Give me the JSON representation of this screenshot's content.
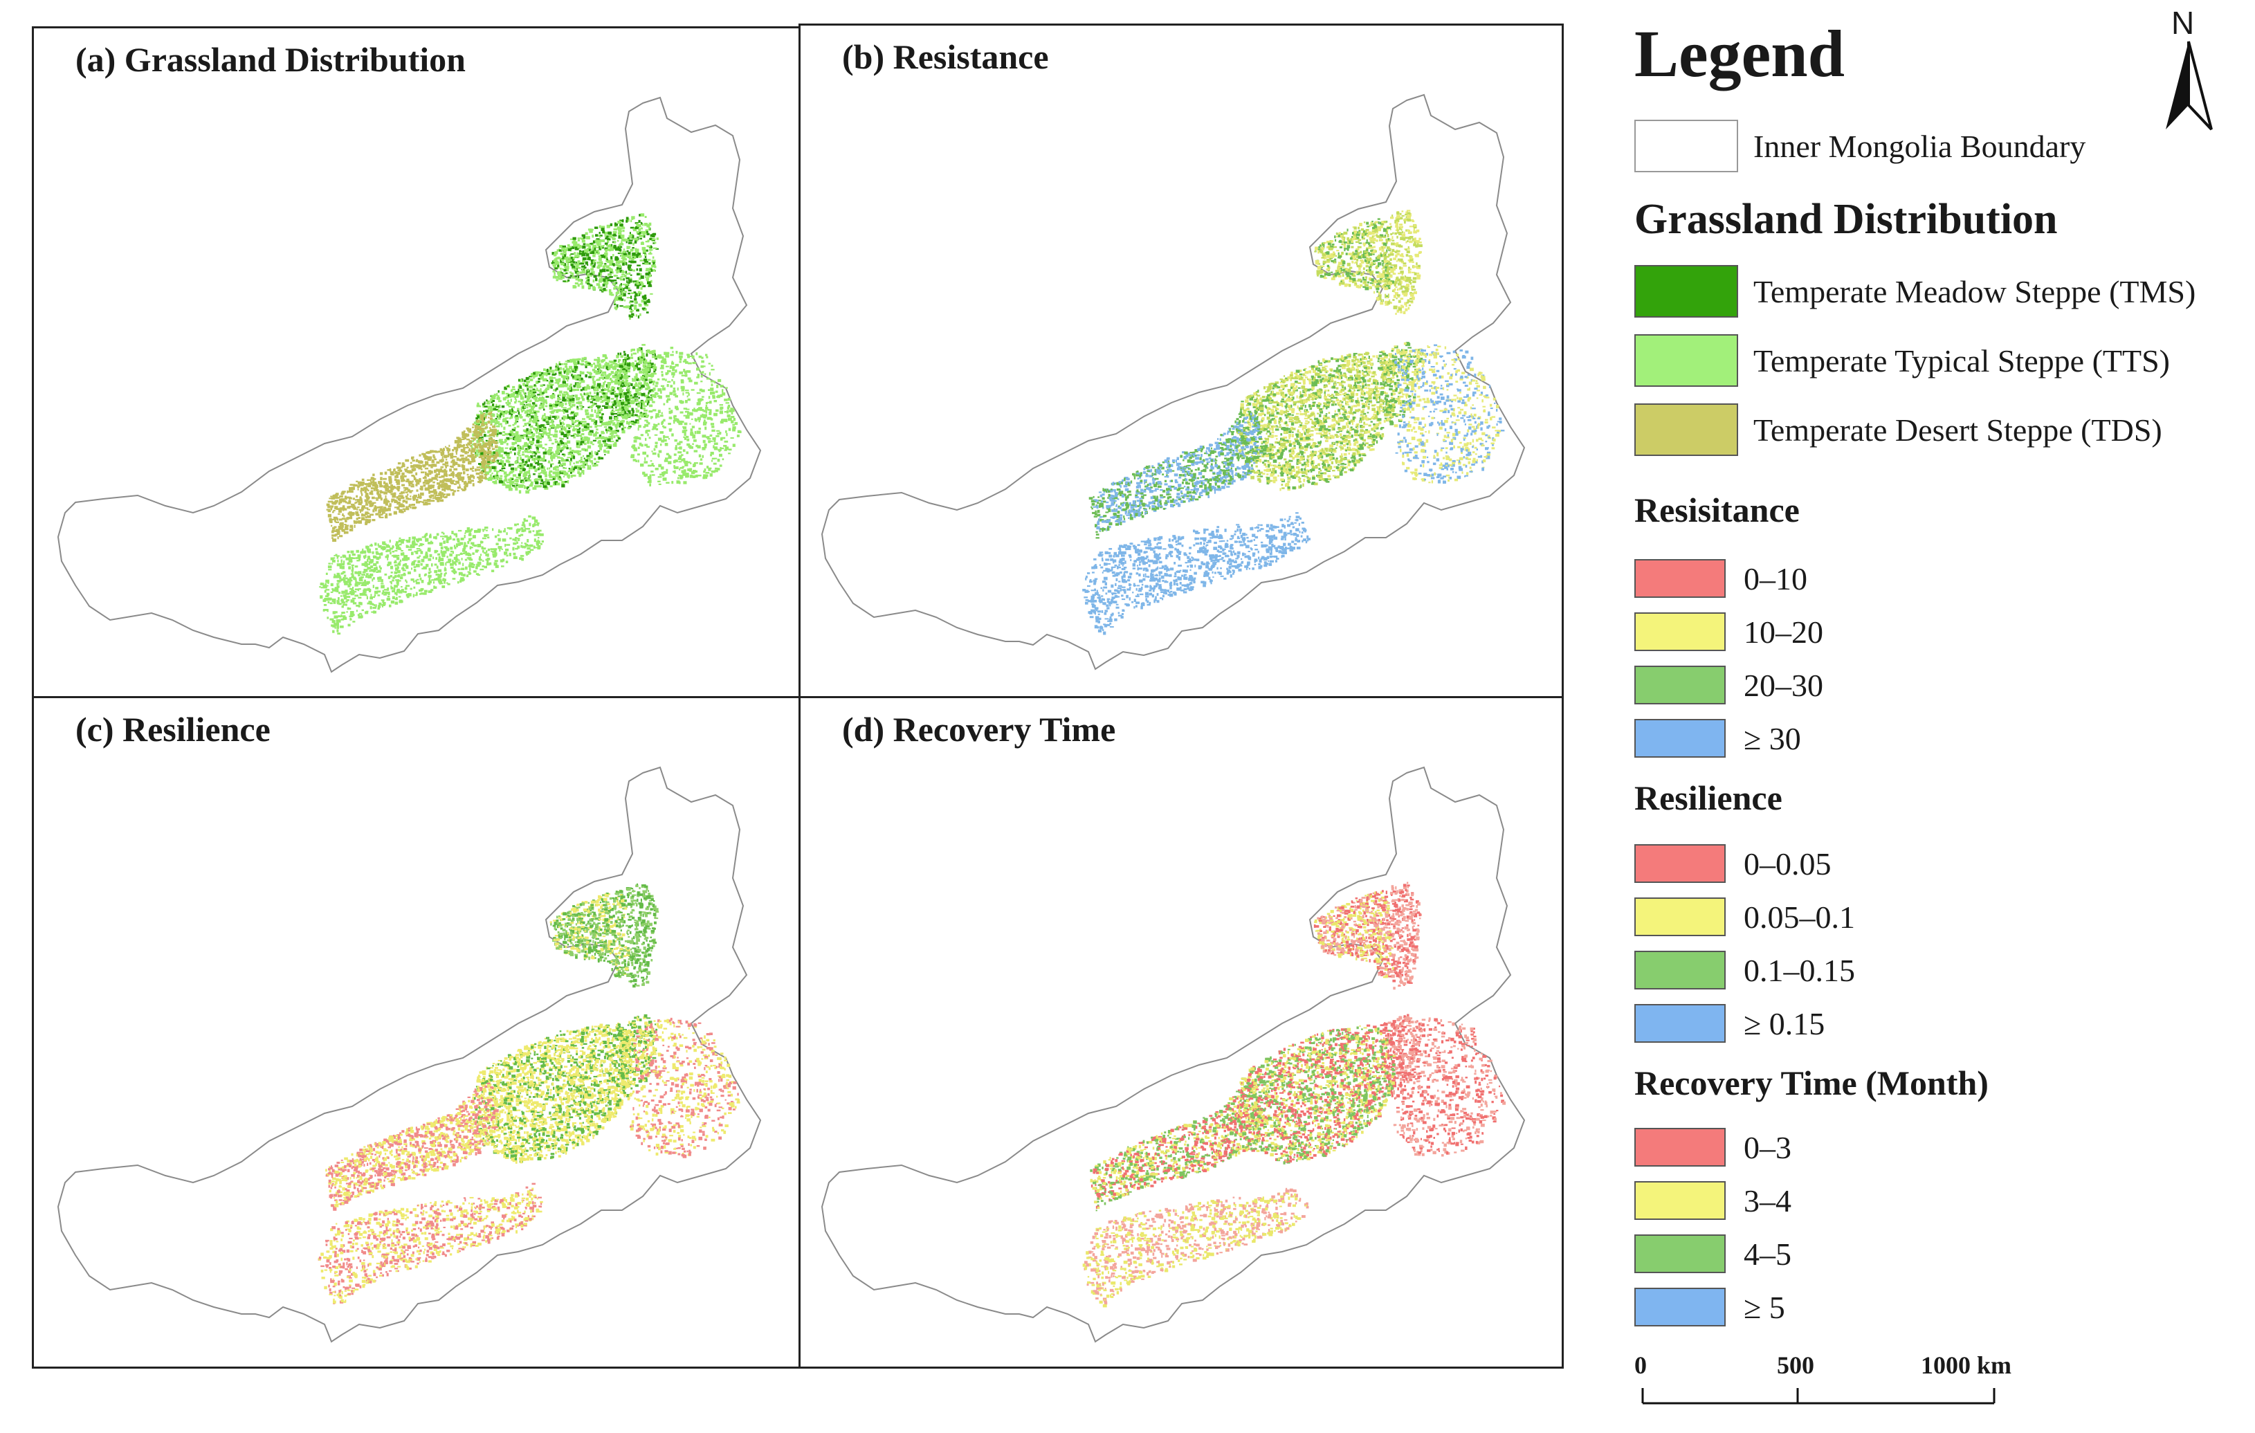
{
  "panels": [
    {
      "id": "a",
      "title": "(a) Grassland Distribution",
      "palette": [
        "#2e9a0c",
        "#98ea6c",
        "#c0be5a"
      ]
    },
    {
      "id": "b",
      "title": "(b) Resistance",
      "palette": [
        "#c4dc5e",
        "#e6ea78",
        "#6cbc54",
        "#7fb6e8"
      ]
    },
    {
      "id": "c",
      "title": "(c) Resilience",
      "palette": [
        "#64bb48",
        "#eeea6e",
        "#f08a8a",
        "#8fcf6a"
      ]
    },
    {
      "id": "d",
      "title": "(d) Recovery Time",
      "palette": [
        "#f07070",
        "#eae86c",
        "#f3a59c",
        "#7ec460"
      ]
    }
  ],
  "legend": {
    "title": "Legend",
    "north_label": "N",
    "boundary_label": "Inner Mongolia Boundary",
    "grassland_heading": "Grassland Distribution",
    "grassland_types": [
      {
        "label": "Temperate Meadow Steppe (TMS)",
        "color": "#33a30b"
      },
      {
        "label": "Temperate Typical Steppe (TTS)",
        "color": "#a2f07a"
      },
      {
        "label": "Temperate Desert Steppe (TDS)",
        "color": "#cccc66"
      }
    ],
    "resistance_heading": "Resisitance",
    "resistance_classes": [
      {
        "label": "0–10",
        "color": "#f47b7b"
      },
      {
        "label": "10–20",
        "color": "#f4f47b"
      },
      {
        "label": "20–30",
        "color": "#87cd6e"
      },
      {
        "label": "≥ 30",
        "color": "#7fb5f0"
      }
    ],
    "resilience_heading": "Resilience",
    "resilience_classes": [
      {
        "label": "0–0.05",
        "color": "#f47b7b"
      },
      {
        "label": "0.05–0.1",
        "color": "#f4f47b"
      },
      {
        "label": "0.1–0.15",
        "color": "#87cd6e"
      },
      {
        "label": "≥ 0.15",
        "color": "#7fb5f0"
      }
    ],
    "recovery_heading": "Recovery Time (Month)",
    "recovery_classes": [
      {
        "label": "0–3",
        "color": "#f47b7b"
      },
      {
        "label": "3–4",
        "color": "#f4f47b"
      },
      {
        "label": "4–5",
        "color": "#87cd6e"
      },
      {
        "label": "≥ 5",
        "color": "#7fb5f0"
      }
    ],
    "scale": {
      "labels": [
        "0",
        "500",
        "1000 km"
      ]
    }
  }
}
